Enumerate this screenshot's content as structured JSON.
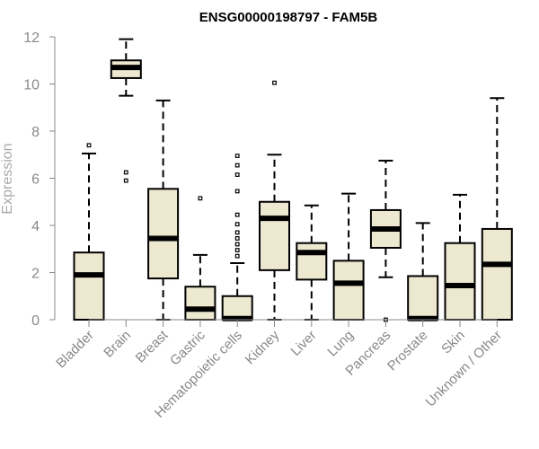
{
  "chart_data": {
    "type": "boxplot",
    "title": "ENSG00000198797 - FAM5B",
    "xlabel": "",
    "ylabel": "Expression",
    "ylim": [
      0,
      12
    ],
    "yticks": [
      0,
      2,
      4,
      6,
      8,
      10,
      12
    ],
    "box_color": "#ede8d0",
    "categories": [
      "Bladder",
      "Brain",
      "Breast",
      "Gastric",
      "Hematopoietic cells",
      "Kidney",
      "Liver",
      "Lung",
      "Pancreas",
      "Prostate",
      "Skin",
      "Unknown / Other"
    ],
    "boxes": [
      {
        "category": "Bladder",
        "whisker_low": 0,
        "q1": 0,
        "median": 1.9,
        "q3": 2.85,
        "whisker_high": 7.05,
        "outliers": [
          7.4
        ]
      },
      {
        "category": "Brain",
        "whisker_low": 9.5,
        "q1": 10.25,
        "median": 10.7,
        "q3": 11.0,
        "whisker_high": 11.9,
        "outliers": [
          6.25,
          5.9
        ]
      },
      {
        "category": "Breast",
        "whisker_low": 0,
        "q1": 1.75,
        "median": 3.45,
        "q3": 5.55,
        "whisker_high": 9.3,
        "outliers": []
      },
      {
        "category": "Gastric",
        "whisker_low": 0,
        "q1": 0,
        "median": 0.45,
        "q3": 1.4,
        "whisker_high": 2.75,
        "outliers": [
          5.15
        ]
      },
      {
        "category": "Hematopoietic cells",
        "whisker_low": 0,
        "q1": 0,
        "median": 0.05,
        "q3": 1.0,
        "whisker_high": 2.4,
        "outliers": [
          2.7,
          2.95,
          3.2,
          3.45,
          3.7,
          4.05,
          4.45,
          5.45,
          6.15,
          6.55,
          6.95
        ]
      },
      {
        "category": "Kidney",
        "whisker_low": 0,
        "q1": 2.1,
        "median": 4.3,
        "q3": 5.0,
        "whisker_high": 7.0,
        "outliers": [
          10.05
        ]
      },
      {
        "category": "Liver",
        "whisker_low": 0,
        "q1": 1.7,
        "median": 2.85,
        "q3": 3.25,
        "whisker_high": 4.85,
        "outliers": []
      },
      {
        "category": "Lung",
        "whisker_low": 0,
        "q1": 0,
        "median": 1.55,
        "q3": 2.5,
        "whisker_high": 5.35,
        "outliers": []
      },
      {
        "category": "Pancreas",
        "whisker_low": 1.8,
        "q1": 3.05,
        "median": 3.85,
        "q3": 4.65,
        "whisker_high": 6.75,
        "outliers": [
          0
        ]
      },
      {
        "category": "Prostate",
        "whisker_low": 0,
        "q1": 0,
        "median": 0.05,
        "q3": 1.85,
        "whisker_high": 4.1,
        "outliers": []
      },
      {
        "category": "Skin",
        "whisker_low": 0,
        "q1": 0,
        "median": 1.45,
        "q3": 3.25,
        "whisker_high": 5.3,
        "outliers": []
      },
      {
        "category": "Unknown / Other",
        "whisker_low": 0,
        "q1": 0,
        "median": 2.35,
        "q3": 3.85,
        "whisker_high": 9.4,
        "outliers": []
      }
    ]
  }
}
